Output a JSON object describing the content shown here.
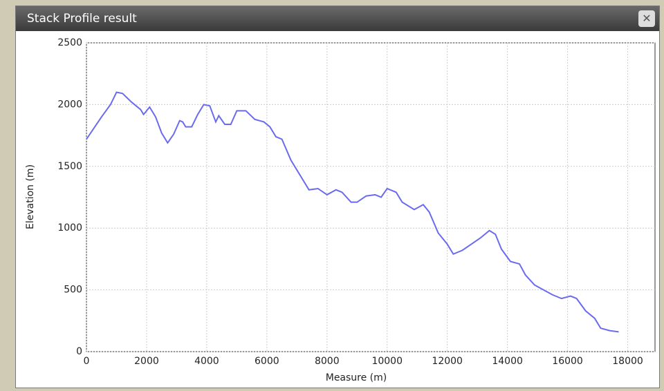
{
  "window": {
    "title": "Stack Profile result"
  },
  "chart_data": {
    "type": "line",
    "x_label": "Measure (m)",
    "y_label": "Elevation (m)",
    "xlim": [
      0,
      19000
    ],
    "ylim": [
      0,
      2500
    ],
    "xticks": [
      0,
      2000,
      4000,
      6000,
      8000,
      10000,
      12000,
      14000,
      16000,
      18000
    ],
    "yticks": [
      0,
      500,
      1000,
      1500,
      2000,
      2500
    ],
    "grid": true,
    "series": [
      {
        "color": "#6a6af0",
        "x": [
          0,
          500,
          800,
          1000,
          1200,
          1500,
          1800,
          1900,
          2100,
          2300,
          2500,
          2700,
          2900,
          3100,
          3200,
          3300,
          3500,
          3700,
          3900,
          4100,
          4300,
          4400,
          4600,
          4800,
          5000,
          5300,
          5600,
          5900,
          6100,
          6300,
          6500,
          6800,
          7100,
          7400,
          7700,
          8000,
          8300,
          8500,
          8800,
          9000,
          9300,
          9600,
          9800,
          10000,
          10300,
          10500,
          10900,
          11200,
          11400,
          11700,
          12000,
          12200,
          12500,
          12800,
          13100,
          13400,
          13600,
          13800,
          14100,
          14400,
          14600,
          14900,
          15200,
          15500,
          15800,
          16100,
          16300,
          16600,
          16900,
          17100,
          17400,
          17700
        ],
        "values": [
          1720,
          1900,
          2000,
          2100,
          2090,
          2020,
          1960,
          1920,
          1980,
          1900,
          1770,
          1690,
          1760,
          1870,
          1860,
          1820,
          1820,
          1920,
          2000,
          1990,
          1860,
          1910,
          1840,
          1840,
          1950,
          1950,
          1880,
          1860,
          1820,
          1740,
          1720,
          1550,
          1430,
          1310,
          1320,
          1270,
          1310,
          1290,
          1210,
          1210,
          1260,
          1270,
          1250,
          1320,
          1290,
          1210,
          1150,
          1190,
          1130,
          960,
          870,
          790,
          820,
          870,
          920,
          980,
          950,
          830,
          730,
          710,
          620,
          540,
          500,
          460,
          430,
          450,
          430,
          330,
          270,
          190,
          170,
          160
        ]
      }
    ]
  }
}
